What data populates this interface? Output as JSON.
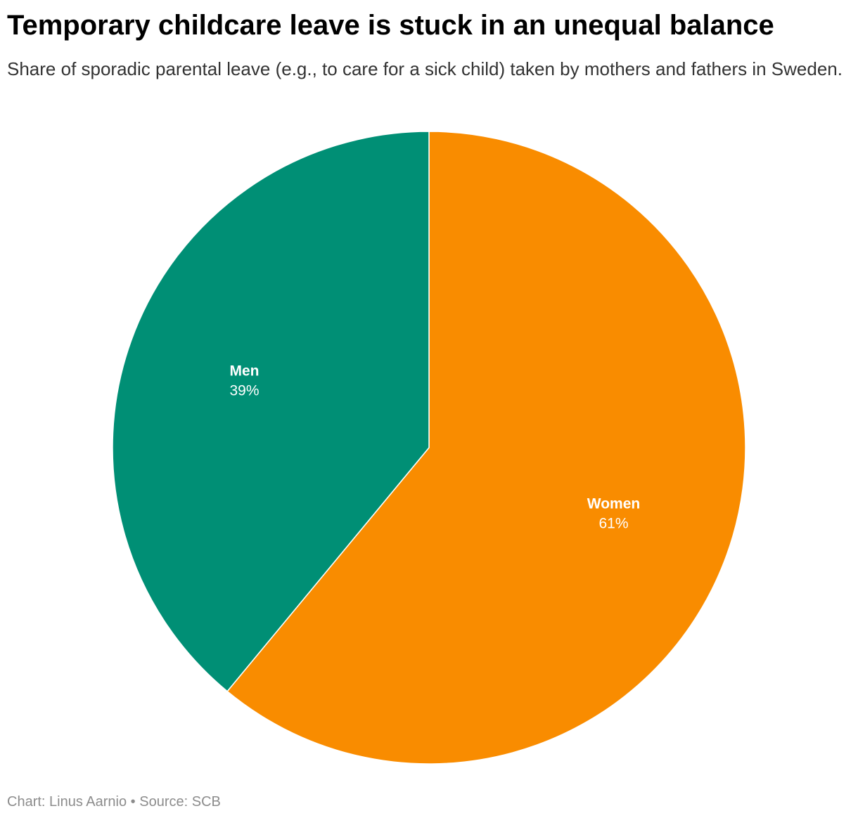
{
  "chart_data": {
    "type": "pie",
    "title": "Temporary childcare leave is stuck in an unequal balance",
    "subtitle": "Share of sporadic parental leave (e.g., to care for a sick child) taken by mothers and fathers in Sweden.",
    "slices": [
      {
        "name": "Women",
        "value": 61,
        "label": "61%",
        "color": "#f98c00"
      },
      {
        "name": "Men",
        "value": 39,
        "label": "39%",
        "color": "#008f75"
      }
    ],
    "legend": "none",
    "slice_border_color": "#ffffff"
  },
  "footer": {
    "credit": "Chart: Linus Aarnio",
    "separator": "•",
    "source": "Source: SCB"
  }
}
